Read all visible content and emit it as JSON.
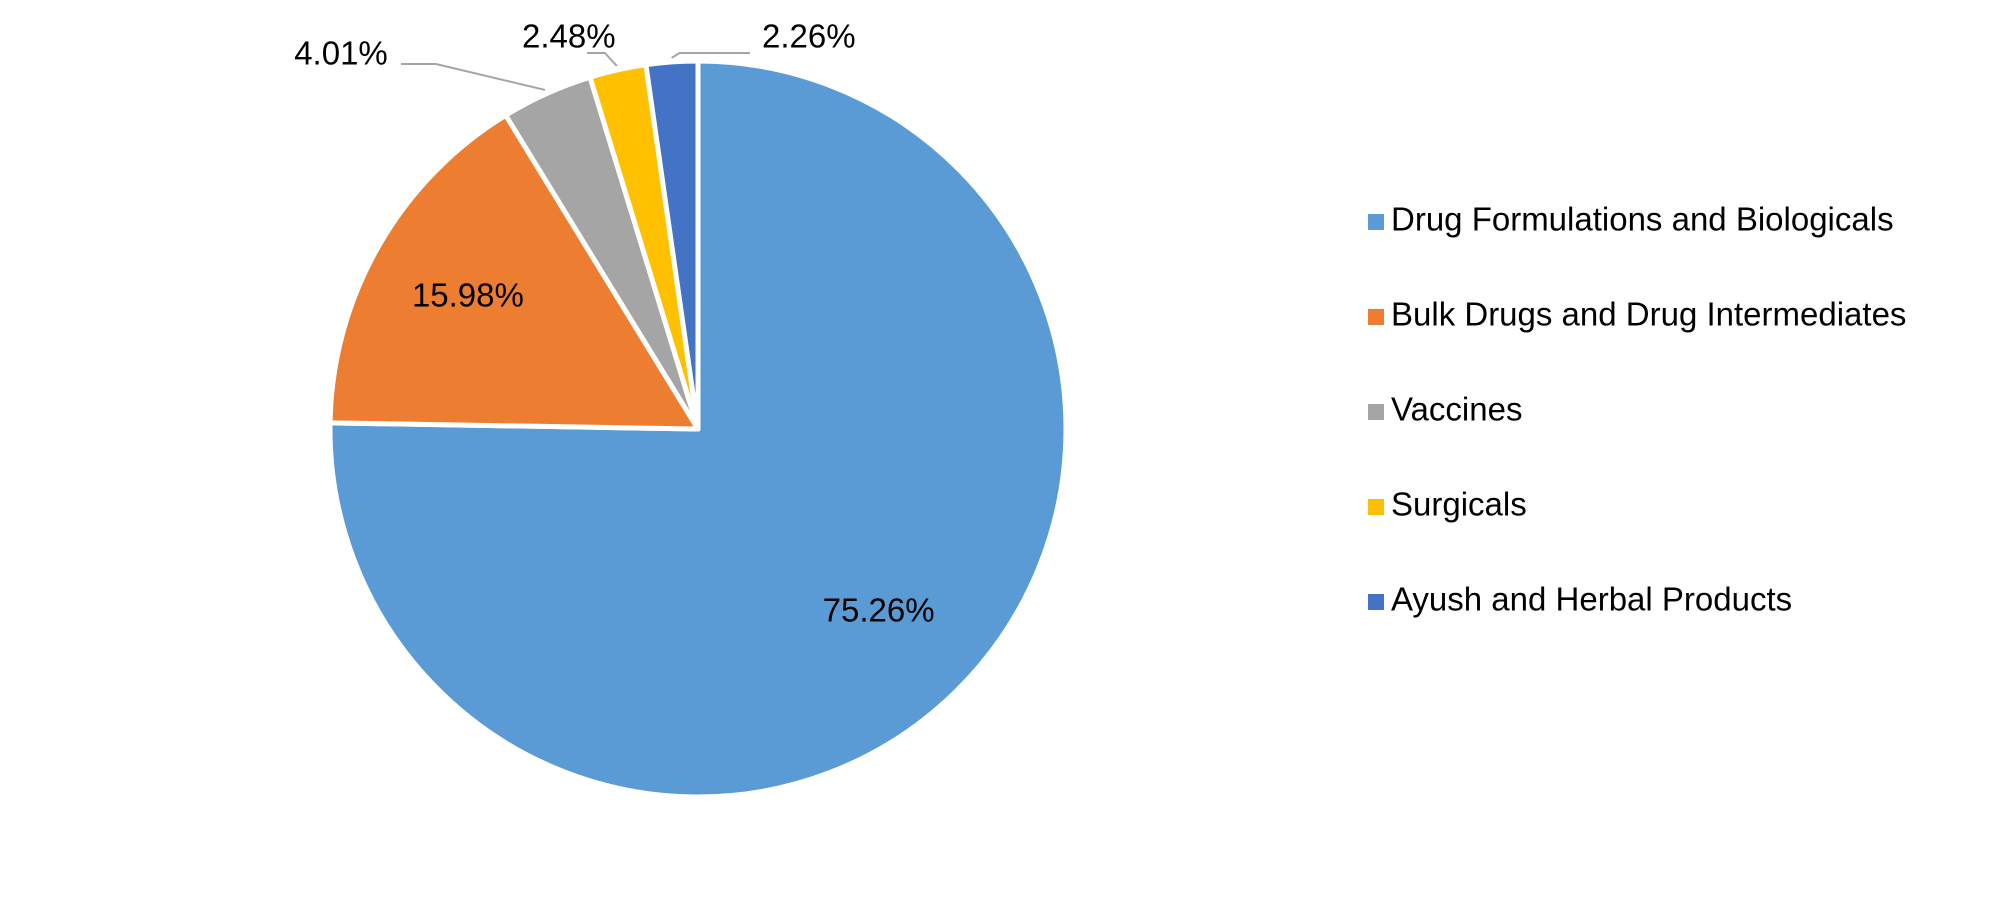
{
  "chart_data": {
    "type": "pie",
    "categories": [
      "Drug Formulations and Biologicals",
      "Bulk Drugs and Drug Intermediates",
      "Vaccines",
      "Surgicals",
      "Ayush and Herbal Products"
    ],
    "values": [
      75.26,
      15.98,
      4.01,
      2.48,
      2.26
    ],
    "value_labels": [
      "75.26%",
      "15.98%",
      "4.01%",
      "2.48%",
      "2.26%"
    ],
    "colors": [
      "#5b9bd5",
      "#ed7d31",
      "#a5a5a5",
      "#ffc000",
      "#4472c4"
    ],
    "legend": "right"
  }
}
